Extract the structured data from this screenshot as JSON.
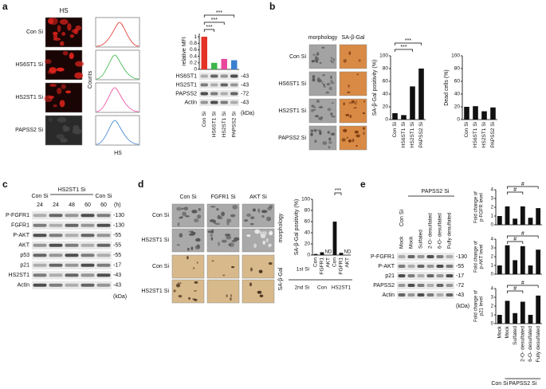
{
  "a": {
    "label": "a",
    "image_title": "HS",
    "rows": [
      "Con Si",
      "HS6ST1 Si",
      "HS2ST1 Si",
      "PAPSS2 Si"
    ],
    "flow_ylabel": "Counts",
    "flow_xlabel": "HS",
    "chart": {
      "type": "bar",
      "ylabel": "relative MFI",
      "categories": [
        "Con Si",
        "HS6ST1 Si",
        "HS2ST1 Si",
        "PAPSS2 Si"
      ],
      "values": [
        1,
        0.2,
        0.32,
        0.28
      ],
      "colors": [
        "#e53226",
        "#3cb54a",
        "#e8479c",
        "#3b7fd0"
      ],
      "ylim": [
        0,
        1.1
      ],
      "yticks": [
        0,
        0.2,
        0.4,
        0.6,
        0.8,
        1
      ],
      "significance": [
        "***",
        "***",
        "***"
      ]
    },
    "blot": {
      "rows": [
        "HS6ST1",
        "HS2ST1",
        "PAPSS2",
        "Actin"
      ],
      "markers": [
        "-43",
        "-43",
        "-72",
        "-43"
      ],
      "unit": "(kDa)"
    }
  },
  "b": {
    "label": "b",
    "columns": [
      "morphology",
      "SA-β-Gal"
    ],
    "rows": [
      "Con Si",
      "HS6ST1 Si",
      "HS2ST1 Si",
      "PAPSS2 Si"
    ],
    "charts": [
      {
        "type": "bar",
        "ylabel": "SA-β-Gal positivity (%)",
        "categories": [
          "Con Si",
          "HS6ST1 Si",
          "HS2ST1 Si",
          "PAPSS2 Si"
        ],
        "values": [
          10,
          7,
          52,
          80
        ],
        "color": "#111111",
        "ylim": [
          0,
          100
        ],
        "yticks": [
          0,
          20,
          40,
          60,
          80,
          100
        ],
        "significance": [
          "***",
          "***"
        ]
      },
      {
        "type": "bar",
        "ylabel": "Dead cells (%)",
        "categories": [
          "Con Si",
          "HS6ST1 Si",
          "HS2ST1 Si",
          "PAPSS2 Si"
        ],
        "values": [
          20,
          21,
          13,
          19
        ],
        "color": "#111111",
        "ylim": [
          0,
          100
        ],
        "yticks": [
          0,
          20,
          40,
          60,
          80,
          100
        ]
      }
    ]
  },
  "c": {
    "label": "c",
    "groups": [
      "Con Si",
      "HS2ST1 Si",
      "Con Si"
    ],
    "times": [
      "24",
      "24",
      "48",
      "60",
      "60"
    ],
    "time_unit": "(h)",
    "blot": {
      "rows": [
        "P-FGFR1",
        "FGFR1",
        "P-AKT",
        "AKT",
        "p53",
        "p21",
        "HS2ST1",
        "Actin"
      ],
      "markers": [
        "-130",
        "-130",
        "-55",
        "-55",
        "-55",
        "-17",
        "-43",
        "-43"
      ],
      "unit": "(kDa)"
    }
  },
  "d": {
    "label": "d",
    "columns": [
      "Con Si",
      "FGFR1 Si",
      "AKT Si"
    ],
    "rows": [
      "Con Si",
      "HS2ST1 Si",
      "Con Si",
      "HS2ST1 Si"
    ],
    "sections": [
      "morphology",
      "SA-β-Gal"
    ],
    "chart": {
      "type": "bar",
      "ylabel": "SA-β-Gal positivity (%)",
      "categories": [
        "Con",
        "FGFR1",
        "AKT",
        "Con",
        "FGFR1",
        "AKT"
      ],
      "values": [
        2,
        5,
        null,
        60,
        4,
        null
      ],
      "value_labels": [
        null,
        null,
        "ND",
        null,
        null,
        "ND"
      ],
      "row_labels": [
        "1st Si",
        "2nd Si"
      ],
      "groups": [
        "Con",
        "HS2ST1"
      ],
      "color": "#111111",
      "ylim": [
        0,
        100
      ],
      "yticks": [
        0,
        20,
        40,
        60,
        80,
        100
      ],
      "significance": [
        "***"
      ]
    }
  },
  "e": {
    "label": "e",
    "blot_groups": [
      "Con Si",
      "PAPSS2 Si"
    ],
    "lanes": [
      "Mock",
      "Mock",
      "Sulfated",
      "2-O- desulfated",
      "6-O- desulfated",
      "Fully desulfated"
    ],
    "blot": {
      "rows": [
        "P-FGFR1",
        "P-AKT",
        "p21",
        "PAPSS2",
        "Actin"
      ],
      "markers": [
        "-130",
        "-55",
        "-17",
        "-72",
        "-43"
      ],
      "unit": "(kDa)"
    },
    "charts": [
      {
        "type": "bar",
        "ylabel": "Fold change of p-FGFR level",
        "values": [
          1,
          2.1,
          0.7,
          2.1,
          0.8,
          1.9
        ],
        "color": "#111111",
        "ylim": [
          0,
          4
        ],
        "yticks": [
          0,
          1,
          2,
          3,
          4
        ],
        "significance": [
          "#",
          "#"
        ]
      },
      {
        "type": "bar",
        "ylabel": "Fold change of p-AKT level",
        "values": [
          1,
          3.3,
          1.6,
          3.2,
          1,
          2.8
        ],
        "color": "#111111",
        "ylim": [
          0,
          4
        ],
        "yticks": [
          0,
          1,
          2,
          3,
          4
        ],
        "significance": [
          "#",
          "#"
        ]
      },
      {
        "type": "bar",
        "ylabel": "Fold change of p21 level",
        "values": [
          1,
          2.6,
          1.2,
          2.5,
          1,
          3.2
        ],
        "color": "#111111",
        "ylim": [
          0,
          4
        ],
        "yticks": [
          0,
          1,
          2,
          3,
          4
        ],
        "significance": [
          "#",
          "#"
        ]
      }
    ],
    "chart_categories": [
      "Mock",
      "Mock",
      "Sulfated",
      "2-O- desulfated",
      "6-O- desulfated",
      "Fully desulfated"
    ],
    "chart_groups": [
      "Con Si",
      "PAPSS2 Si"
    ]
  }
}
